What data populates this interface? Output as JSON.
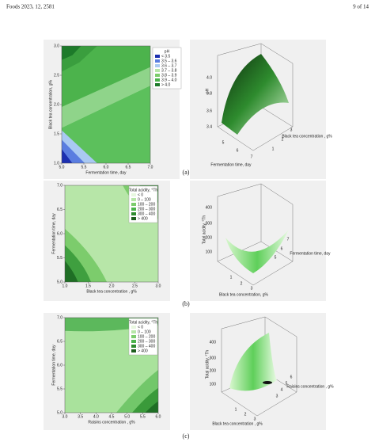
{
  "header": {
    "citation": "Foods 2023, 12, 2581",
    "page": "9 of 14"
  },
  "panels": [
    {
      "caption": "(a)",
      "contour": {
        "x_label": "Fermentation time, day",
        "y_label": "Black tea concentration, g%",
        "xticks": [
          "5.0",
          "5.5",
          "6.0",
          "6.5",
          "7.0"
        ],
        "yticks": [
          "1.0",
          "1.5",
          "2.0",
          "2.5",
          "3.0"
        ],
        "legend_title": "pH",
        "legend": [
          "< 3.5",
          "3.5 – 3.6",
          "3.6 – 3.7",
          "3.7 – 3.8",
          "3.8 – 3.9",
          "3.9 – 4.0",
          "> 4.0"
        ]
      },
      "surface": {
        "z_label": "pH",
        "zticks": [
          "3.4",
          "3.6",
          "3.8",
          "4.0"
        ],
        "x_label": "Fermentation time, day",
        "xticks": [
          "5",
          "6",
          "7"
        ],
        "y_label": "Black tea concentration , g%",
        "yticks": [
          "1",
          "2",
          "3"
        ]
      }
    },
    {
      "caption": "(b)",
      "contour": {
        "x_label": "Black tea concentration , g%",
        "y_label": "Fermentation time, day",
        "xticks": [
          "1.0",
          "1.5",
          "2.0",
          "2.5",
          "3.0"
        ],
        "yticks": [
          "5.0",
          "5.5",
          "6.0",
          "6.5",
          "7.0"
        ],
        "legend_title": "Total acidity, °Th",
        "legend": [
          "< 0",
          "0 – 100",
          "100 – 200",
          "200 – 300",
          "300 – 400",
          "> 400"
        ]
      },
      "surface": {
        "z_label": "Total acidity, °Th",
        "zticks": [
          "100",
          "200",
          "300",
          "400"
        ],
        "x_label": "Fermentation time, day",
        "xticks": [
          "5",
          "6",
          "7"
        ],
        "y_label": "Black tea concentration, g%",
        "yticks": [
          "1",
          "2",
          "3"
        ]
      }
    },
    {
      "caption": "(c)",
      "contour": {
        "x_label": "Raisins concentration , g%",
        "y_label": "Fermentation time, day",
        "xticks": [
          "3.0",
          "3.5",
          "4.0",
          "4.5",
          "5.0",
          "5.5",
          "6.0"
        ],
        "yticks": [
          "5.0",
          "5.5",
          "6.0",
          "6.5",
          "7.0"
        ],
        "legend_title": "Total acidity, °Th",
        "legend": [
          "< 0",
          "0 – 100",
          "100 – 200",
          "200 – 300",
          "300 – 400",
          "> 400"
        ]
      },
      "surface": {
        "z_label": "Total acidity, °Th",
        "zticks": [
          "100",
          "200",
          "300",
          "400"
        ],
        "x_label": "Raisins concentration , g%",
        "xticks": [
          "3",
          "4",
          "5",
          "6"
        ],
        "y_label": "Black tea concentration , g%",
        "yticks": [
          "1",
          "2",
          "3"
        ]
      }
    }
  ]
}
